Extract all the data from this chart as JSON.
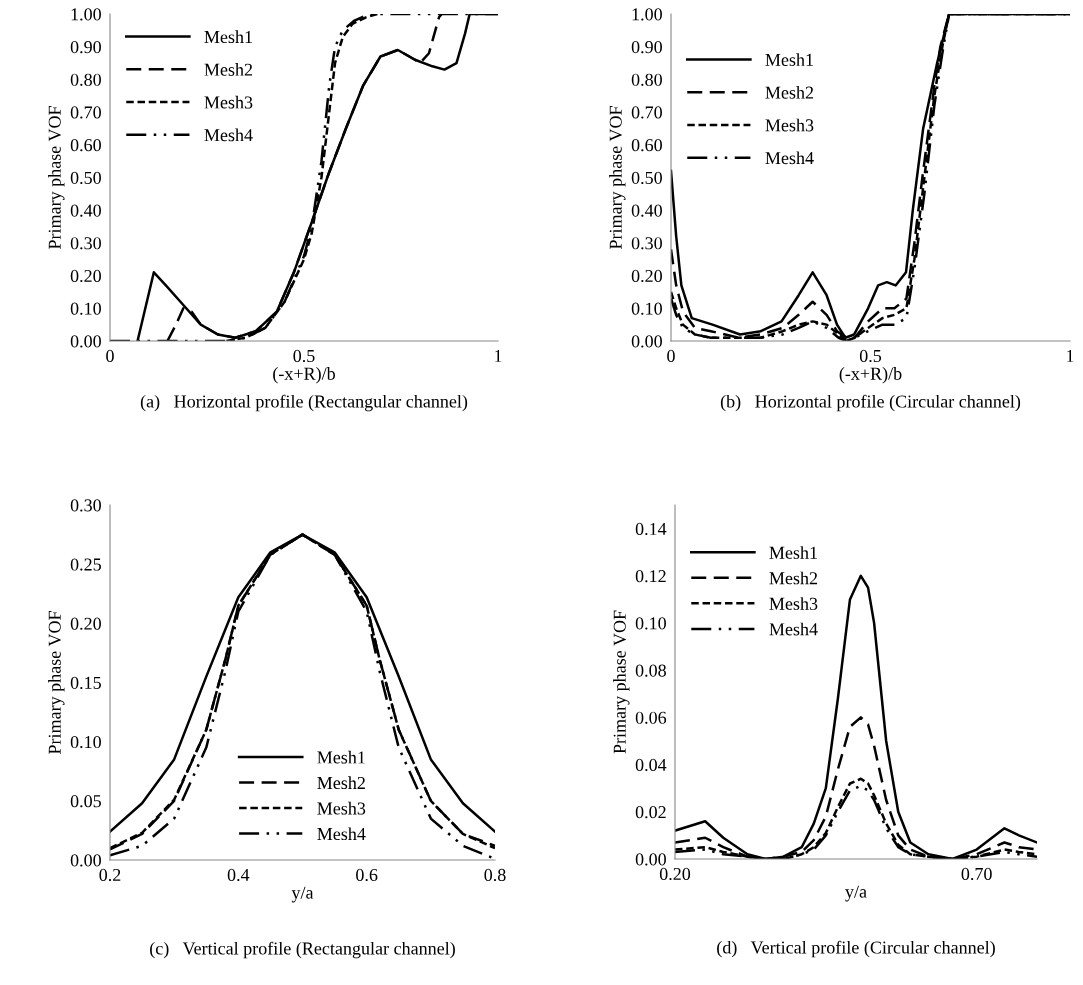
{
  "chart_data": [
    {
      "type": "line",
      "xlabel": "(-x+R)/b",
      "ylabel": "Primary phase VOF",
      "annotations": [
        "(a)   Horizontal profile (Rectangular channel)"
      ],
      "xlim": [
        0,
        1
      ],
      "ylim": [
        0,
        1
      ],
      "xticks": [
        0,
        0.5,
        1
      ],
      "yticks": [
        {
          "value": 0,
          "label": "0.00"
        },
        {
          "value": 0.1,
          "label": "0.10"
        },
        {
          "value": 0.2,
          "label": "0.20"
        },
        {
          "value": 0.3,
          "label": "0.30"
        },
        {
          "value": 0.4,
          "label": "0.40"
        },
        {
          "value": 0.5,
          "label": "0.50"
        },
        {
          "value": 0.6,
          "label": "0.60"
        },
        {
          "value": 0.7,
          "label": "0.70"
        },
        {
          "value": 0.8,
          "label": "0.80"
        },
        {
          "value": 0.9,
          "label": "0.90"
        },
        {
          "value": 1,
          "label": "1.00"
        }
      ],
      "grid": false,
      "legend": "top left",
      "series": [
        {
          "name": "Mesh1",
          "color": "#000000",
          "line_style": "solid",
          "x": [
            0.071,
            0.113,
            0.144,
            0.189,
            0.234,
            0.278,
            0.323,
            0.376,
            0.43,
            0.474,
            0.519,
            0.563,
            0.608,
            0.652,
            0.697,
            0.742,
            0.786,
            0.831,
            0.862,
            0.893,
            0.915,
            0.927,
            1
          ],
          "values": [
            0,
            0.21,
            0.17,
            0.11,
            0.05,
            0.02,
            0.01,
            0.03,
            0.09,
            0.21,
            0.36,
            0.51,
            0.65,
            0.78,
            0.87,
            0.89,
            0.86,
            0.84,
            0.83,
            0.85,
            0.94,
            1,
            1
          ]
        },
        {
          "name": "Mesh2",
          "color": "#000000",
          "line_style": "dashed",
          "x": [
            0.148,
            0.17,
            0.189,
            0.21,
            0.234,
            0.278,
            0.323,
            0.376,
            0.43,
            0.474,
            0.519,
            0.563,
            0.608,
            0.652,
            0.697,
            0.742,
            0.786,
            0.799,
            0.822,
            0.848,
            0.855
          ],
          "values": [
            0,
            0.05,
            0.1,
            0.09,
            0.05,
            0.02,
            0.01,
            0.03,
            0.09,
            0.21,
            0.36,
            0.51,
            0.65,
            0.78,
            0.87,
            0.89,
            0.86,
            0.85,
            0.88,
            0.99,
            1
          ]
        },
        {
          "name": "Mesh3",
          "color": "#000000",
          "line_style": "dotted",
          "x": [
            0.3,
            0.35,
            0.4,
            0.45,
            0.5,
            0.52,
            0.545,
            0.565,
            0.58,
            0.6,
            0.625,
            0.66,
            0.69
          ],
          "values": [
            0,
            0.01,
            0.04,
            0.12,
            0.25,
            0.33,
            0.5,
            0.7,
            0.85,
            0.93,
            0.97,
            0.99,
            1
          ]
        },
        {
          "name": "Mesh4",
          "color": "#000000",
          "line_style": "dashdot",
          "x": [
            0,
            0.3,
            0.35,
            0.4,
            0.45,
            0.5,
            0.52,
            0.545,
            0.565,
            0.58,
            0.6,
            0.63,
            0.67,
            1
          ],
          "values": [
            0,
            0,
            0.01,
            0.04,
            0.12,
            0.26,
            0.35,
            0.55,
            0.78,
            0.9,
            0.95,
            0.98,
            1,
            1
          ]
        }
      ]
    },
    {
      "type": "line",
      "xlabel": "(-x+R)/b",
      "ylabel": "Primary phase VOF",
      "annotations": [
        "(b)   Horizontal profile (Circular channel)"
      ],
      "xlim": [
        0,
        1
      ],
      "ylim": [
        0,
        1
      ],
      "xticks": [
        0,
        0.5,
        1
      ],
      "yticks": [
        {
          "value": 0,
          "label": "0.00"
        },
        {
          "value": 0.1,
          "label": "0.10"
        },
        {
          "value": 0.2,
          "label": "0.20"
        },
        {
          "value": 0.3,
          "label": "0.30"
        },
        {
          "value": 0.4,
          "label": "0.40"
        },
        {
          "value": 0.5,
          "label": "0.50"
        },
        {
          "value": 0.6,
          "label": "0.60"
        },
        {
          "value": 0.7,
          "label": "0.70"
        },
        {
          "value": 0.8,
          "label": "0.80"
        },
        {
          "value": 0.9,
          "label": "0.90"
        },
        {
          "value": 1,
          "label": "1.00"
        }
      ],
      "grid": false,
      "legend": "top left",
      "series": [
        {
          "name": "Mesh1",
          "color": "#000000",
          "line_style": "solid",
          "x": [
            0,
            0.013,
            0.026,
            0.052,
            0.104,
            0.173,
            0.225,
            0.277,
            0.32,
            0.355,
            0.39,
            0.416,
            0.437,
            0.459,
            0.494,
            0.519,
            0.541,
            0.563,
            0.589,
            0.606,
            0.632,
            0.667,
            0.697,
            1
          ],
          "values": [
            0.52,
            0.32,
            0.17,
            0.07,
            0.05,
            0.02,
            0.03,
            0.06,
            0.14,
            0.21,
            0.14,
            0.05,
            0.01,
            0.02,
            0.1,
            0.17,
            0.18,
            0.17,
            0.21,
            0.4,
            0.65,
            0.85,
            1,
            1
          ]
        },
        {
          "name": "Mesh2",
          "color": "#000000",
          "line_style": "dashed",
          "x": [
            0,
            0.013,
            0.03,
            0.06,
            0.1,
            0.17,
            0.225,
            0.28,
            0.32,
            0.355,
            0.39,
            0.416,
            0.44,
            0.46,
            0.494,
            0.53,
            0.56,
            0.59,
            0.61,
            0.63,
            0.66,
            0.675,
            0.697,
            1
          ],
          "values": [
            0.28,
            0.17,
            0.09,
            0.04,
            0.03,
            0.01,
            0.02,
            0.04,
            0.08,
            0.12,
            0.08,
            0.03,
            0.01,
            0.01,
            0.06,
            0.1,
            0.1,
            0.13,
            0.3,
            0.5,
            0.78,
            0.9,
            1,
            1
          ]
        },
        {
          "name": "Mesh3",
          "color": "#000000",
          "line_style": "dotted",
          "x": [
            0,
            0.013,
            0.03,
            0.06,
            0.1,
            0.17,
            0.225,
            0.28,
            0.32,
            0.355,
            0.39,
            0.42,
            0.44,
            0.46,
            0.494,
            0.53,
            0.56,
            0.59,
            0.61,
            0.63,
            0.66,
            0.68,
            0.697,
            1
          ],
          "values": [
            0.15,
            0.1,
            0.05,
            0.02,
            0.01,
            0.01,
            0.01,
            0.03,
            0.05,
            0.06,
            0.05,
            0.02,
            0,
            0.01,
            0.04,
            0.07,
            0.08,
            0.1,
            0.25,
            0.45,
            0.75,
            0.9,
            1,
            1
          ]
        },
        {
          "name": "Mesh4",
          "color": "#000000",
          "line_style": "dashdot",
          "x": [
            0,
            0.013,
            0.03,
            0.06,
            0.1,
            0.17,
            0.225,
            0.28,
            0.32,
            0.355,
            0.39,
            0.42,
            0.44,
            0.46,
            0.494,
            0.53,
            0.56,
            0.59,
            0.61,
            0.635,
            0.66,
            0.68,
            0.697,
            1
          ],
          "values": [
            0.13,
            0.08,
            0.04,
            0.02,
            0.01,
            0.01,
            0.01,
            0.02,
            0.04,
            0.06,
            0.04,
            0.01,
            0,
            0.01,
            0.03,
            0.05,
            0.05,
            0.07,
            0.22,
            0.45,
            0.72,
            0.88,
            1,
            1
          ]
        }
      ]
    },
    {
      "type": "line",
      "xlabel": "y/a",
      "ylabel": "Primary phase VOF",
      "annotations": [
        "(c)   Vertical profile (Rectangular channel)"
      ],
      "xlim": [
        0.2,
        0.8
      ],
      "ylim": [
        0,
        0.3
      ],
      "xticks": [
        0.2,
        0.4,
        0.6,
        0.8
      ],
      "yticks": [
        {
          "value": 0,
          "label": "0.00"
        },
        {
          "value": 0.05,
          "label": "0.05"
        },
        {
          "value": 0.1,
          "label": "0.10"
        },
        {
          "value": 0.15,
          "label": "0.15"
        },
        {
          "value": 0.2,
          "label": "0.20"
        },
        {
          "value": 0.25,
          "label": "0.25"
        },
        {
          "value": 0.3,
          "label": "0.30"
        }
      ],
      "grid": false,
      "legend": "bottom",
      "series": [
        {
          "name": "Mesh1",
          "color": "#000000",
          "line_style": "solid",
          "x": [
            0.2,
            0.25,
            0.3,
            0.35,
            0.4,
            0.45,
            0.5,
            0.55,
            0.6,
            0.65,
            0.7,
            0.75,
            0.8
          ],
          "values": [
            0.024,
            0.048,
            0.085,
            0.155,
            0.222,
            0.26,
            0.275,
            0.26,
            0.222,
            0.155,
            0.085,
            0.048,
            0.024
          ]
        },
        {
          "name": "Mesh2",
          "color": "#000000",
          "line_style": "dashed",
          "x": [
            0.2,
            0.25,
            0.3,
            0.35,
            0.38,
            0.4,
            0.45,
            0.5,
            0.55,
            0.6,
            0.62,
            0.65,
            0.7,
            0.75,
            0.8
          ],
          "values": [
            0.009,
            0.022,
            0.05,
            0.11,
            0.17,
            0.215,
            0.258,
            0.275,
            0.258,
            0.215,
            0.17,
            0.11,
            0.05,
            0.022,
            0.012
          ]
        },
        {
          "name": "Mesh3",
          "color": "#000000",
          "line_style": "dotted",
          "x": [
            0.2,
            0.25,
            0.3,
            0.35,
            0.38,
            0.4,
            0.45,
            0.5,
            0.55,
            0.6,
            0.62,
            0.65,
            0.7,
            0.75,
            0.8
          ],
          "values": [
            0.01,
            0.023,
            0.051,
            0.11,
            0.17,
            0.215,
            0.258,
            0.275,
            0.258,
            0.215,
            0.17,
            0.11,
            0.05,
            0.022,
            0.01
          ]
        },
        {
          "name": "Mesh4",
          "color": "#000000",
          "line_style": "dashdot",
          "x": [
            0.2,
            0.25,
            0.3,
            0.35,
            0.38,
            0.4,
            0.45,
            0.5,
            0.55,
            0.6,
            0.62,
            0.65,
            0.7,
            0.75,
            0.8
          ],
          "values": [
            0.004,
            0.012,
            0.035,
            0.095,
            0.16,
            0.21,
            0.258,
            0.275,
            0.258,
            0.21,
            0.16,
            0.095,
            0.035,
            0.012,
            0.001
          ]
        }
      ]
    },
    {
      "type": "line",
      "xlabel": "y/a",
      "ylabel": "Primary phase VOF",
      "annotations": [
        "(d)   Vertical profile (Circular channel)"
      ],
      "xlim": [
        0.2,
        0.8
      ],
      "ylim": [
        0,
        0.15
      ],
      "xticks": [
        {
          "value": 0.2,
          "label": "0.20"
        },
        {
          "value": 0.7,
          "label": "0.70"
        }
      ],
      "yticks": [
        {
          "value": 0,
          "label": "0.00"
        },
        {
          "value": 0.02,
          "label": "0.02"
        },
        {
          "value": 0.04,
          "label": "0.04"
        },
        {
          "value": 0.06,
          "label": "0.06"
        },
        {
          "value": 0.08,
          "label": "0.08"
        },
        {
          "value": 0.1,
          "label": "0.10"
        },
        {
          "value": 0.12,
          "label": "0.12"
        },
        {
          "value": 0.14,
          "label": "0.14"
        }
      ],
      "grid": false,
      "legend": "top left",
      "series": [
        {
          "name": "Mesh1",
          "color": "#000000",
          "line_style": "solid",
          "x": [
            0.2,
            0.25,
            0.28,
            0.32,
            0.35,
            0.38,
            0.41,
            0.43,
            0.45,
            0.47,
            0.49,
            0.508,
            0.52,
            0.53,
            0.55,
            0.57,
            0.59,
            0.62,
            0.66,
            0.7,
            0.746,
            0.77,
            0.8
          ],
          "values": [
            0.012,
            0.016,
            0.009,
            0.002,
            0,
            0.001,
            0.005,
            0.015,
            0.03,
            0.068,
            0.11,
            0.12,
            0.115,
            0.1,
            0.05,
            0.02,
            0.007,
            0.002,
            0,
            0.004,
            0.013,
            0.01,
            0.007
          ]
        },
        {
          "name": "Mesh2",
          "color": "#000000",
          "line_style": "dashed",
          "x": [
            0.2,
            0.25,
            0.28,
            0.32,
            0.35,
            0.38,
            0.41,
            0.43,
            0.45,
            0.47,
            0.49,
            0.508,
            0.52,
            0.53,
            0.55,
            0.57,
            0.59,
            0.62,
            0.66,
            0.7,
            0.746,
            0.77,
            0.8
          ],
          "values": [
            0.007,
            0.009,
            0.005,
            0.001,
            0,
            0.001,
            0.003,
            0.008,
            0.018,
            0.038,
            0.056,
            0.06,
            0.057,
            0.048,
            0.025,
            0.01,
            0.004,
            0.001,
            0,
            0.002,
            0.007,
            0.005,
            0.004
          ]
        },
        {
          "name": "Mesh3",
          "color": "#000000",
          "line_style": "dotted",
          "x": [
            0.2,
            0.25,
            0.28,
            0.32,
            0.35,
            0.38,
            0.41,
            0.43,
            0.45,
            0.47,
            0.49,
            0.508,
            0.52,
            0.53,
            0.55,
            0.57,
            0.59,
            0.62,
            0.66,
            0.7,
            0.746,
            0.77,
            0.8
          ],
          "values": [
            0.004,
            0.005,
            0.003,
            0.001,
            0,
            0,
            0.002,
            0.005,
            0.011,
            0.022,
            0.032,
            0.034,
            0.032,
            0.027,
            0.015,
            0.006,
            0.002,
            0.001,
            0,
            0.001,
            0.004,
            0.003,
            0.002
          ]
        },
        {
          "name": "Mesh4",
          "color": "#000000",
          "line_style": "dashdot",
          "x": [
            0.2,
            0.25,
            0.28,
            0.32,
            0.35,
            0.38,
            0.41,
            0.43,
            0.45,
            0.47,
            0.49,
            0.508,
            0.52,
            0.53,
            0.55,
            0.57,
            0.59,
            0.62,
            0.66,
            0.7,
            0.746,
            0.77,
            0.8
          ],
          "values": [
            0.003,
            0.004,
            0.002,
            0.001,
            0,
            0,
            0.002,
            0.004,
            0.01,
            0.02,
            0.029,
            0.031,
            0.029,
            0.025,
            0.013,
            0.005,
            0.002,
            0.001,
            0,
            0.001,
            0.003,
            0.002,
            0.001
          ]
        }
      ]
    }
  ]
}
